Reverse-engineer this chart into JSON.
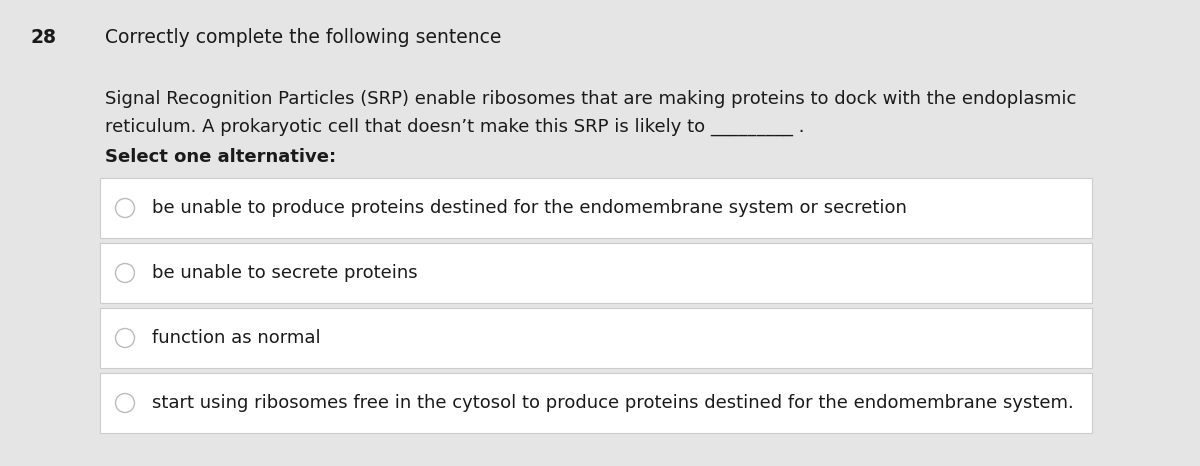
{
  "question_number": "28",
  "question_title": "Correctly complete the following sentence",
  "question_body_line1": "Signal Recognition Particles (SRP) enable ribosomes that are making proteins to dock with the endoplasmic",
  "question_body_line2": "reticulum. A prokaryotic cell that doesn’t make this SRP is likely to _________ .",
  "select_label": "Select one alternative:",
  "options": [
    "be unable to produce proteins destined for the endomembrane system or secretion",
    "be unable to secrete proteins",
    "function as normal",
    "start using ribosomes free in the cytosol to produce proteins destined for the endomembrane system."
  ],
  "bg_color": "#e5e5e5",
  "option_box_color": "#ffffff",
  "option_border_color": "#cccccc",
  "text_color": "#1a1a1a",
  "circle_edge_color": "#bbbbbb",
  "title_fontsize": 13.5,
  "body_fontsize": 13.0,
  "option_fontsize": 13.0
}
